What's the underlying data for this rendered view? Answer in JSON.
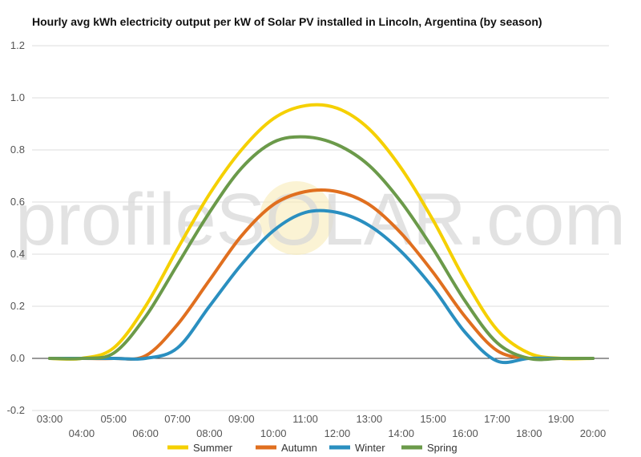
{
  "chart_data": {
    "type": "line",
    "title": "Hourly avg kWh electricity output per kW of Solar PV installed in Lincoln, Argentina (by season)",
    "watermark": "profileSOLAR.com",
    "x_tick_labels": [
      "03:00",
      "04:00",
      "05:00",
      "06:00",
      "07:00",
      "08:00",
      "09:00",
      "10:00",
      "11:00",
      "12:00",
      "13:00",
      "14:00",
      "15:00",
      "16:00",
      "17:00",
      "18:00",
      "19:00",
      "20:00"
    ],
    "ylim": [
      -0.2,
      1.2
    ],
    "y_ticks": [
      "-0.2",
      "0.0",
      "0.2",
      "0.4",
      "0.6",
      "0.8",
      "1.0",
      "1.2"
    ],
    "x": [
      3,
      4,
      5,
      6,
      7,
      8,
      9,
      10,
      11,
      12,
      13,
      14,
      15,
      16,
      17,
      18,
      19,
      20
    ],
    "series": [
      {
        "name": "Summer",
        "color": "#f5d000",
        "values": [
          0.0,
          0.0,
          0.04,
          0.2,
          0.42,
          0.63,
          0.8,
          0.92,
          0.97,
          0.96,
          0.88,
          0.73,
          0.53,
          0.3,
          0.11,
          0.02,
          0.0,
          0.0
        ]
      },
      {
        "name": "Autumn",
        "color": "#e06f1f",
        "values": [
          0.0,
          0.0,
          0.0,
          0.01,
          0.13,
          0.3,
          0.47,
          0.59,
          0.64,
          0.64,
          0.59,
          0.48,
          0.33,
          0.16,
          0.03,
          0.0,
          0.0,
          0.0
        ]
      },
      {
        "name": "Winter",
        "color": "#2a8fc0",
        "values": [
          0.0,
          0.0,
          0.0,
          0.0,
          0.04,
          0.2,
          0.36,
          0.49,
          0.56,
          0.56,
          0.51,
          0.41,
          0.27,
          0.1,
          -0.01,
          0.0,
          0.0,
          0.0
        ]
      },
      {
        "name": "Spring",
        "color": "#6b9a4a",
        "values": [
          0.0,
          0.0,
          0.02,
          0.16,
          0.36,
          0.56,
          0.73,
          0.83,
          0.85,
          0.82,
          0.74,
          0.6,
          0.42,
          0.22,
          0.06,
          0.0,
          0.0,
          0.0
        ]
      }
    ],
    "grid": true,
    "legend_position": "bottom"
  }
}
